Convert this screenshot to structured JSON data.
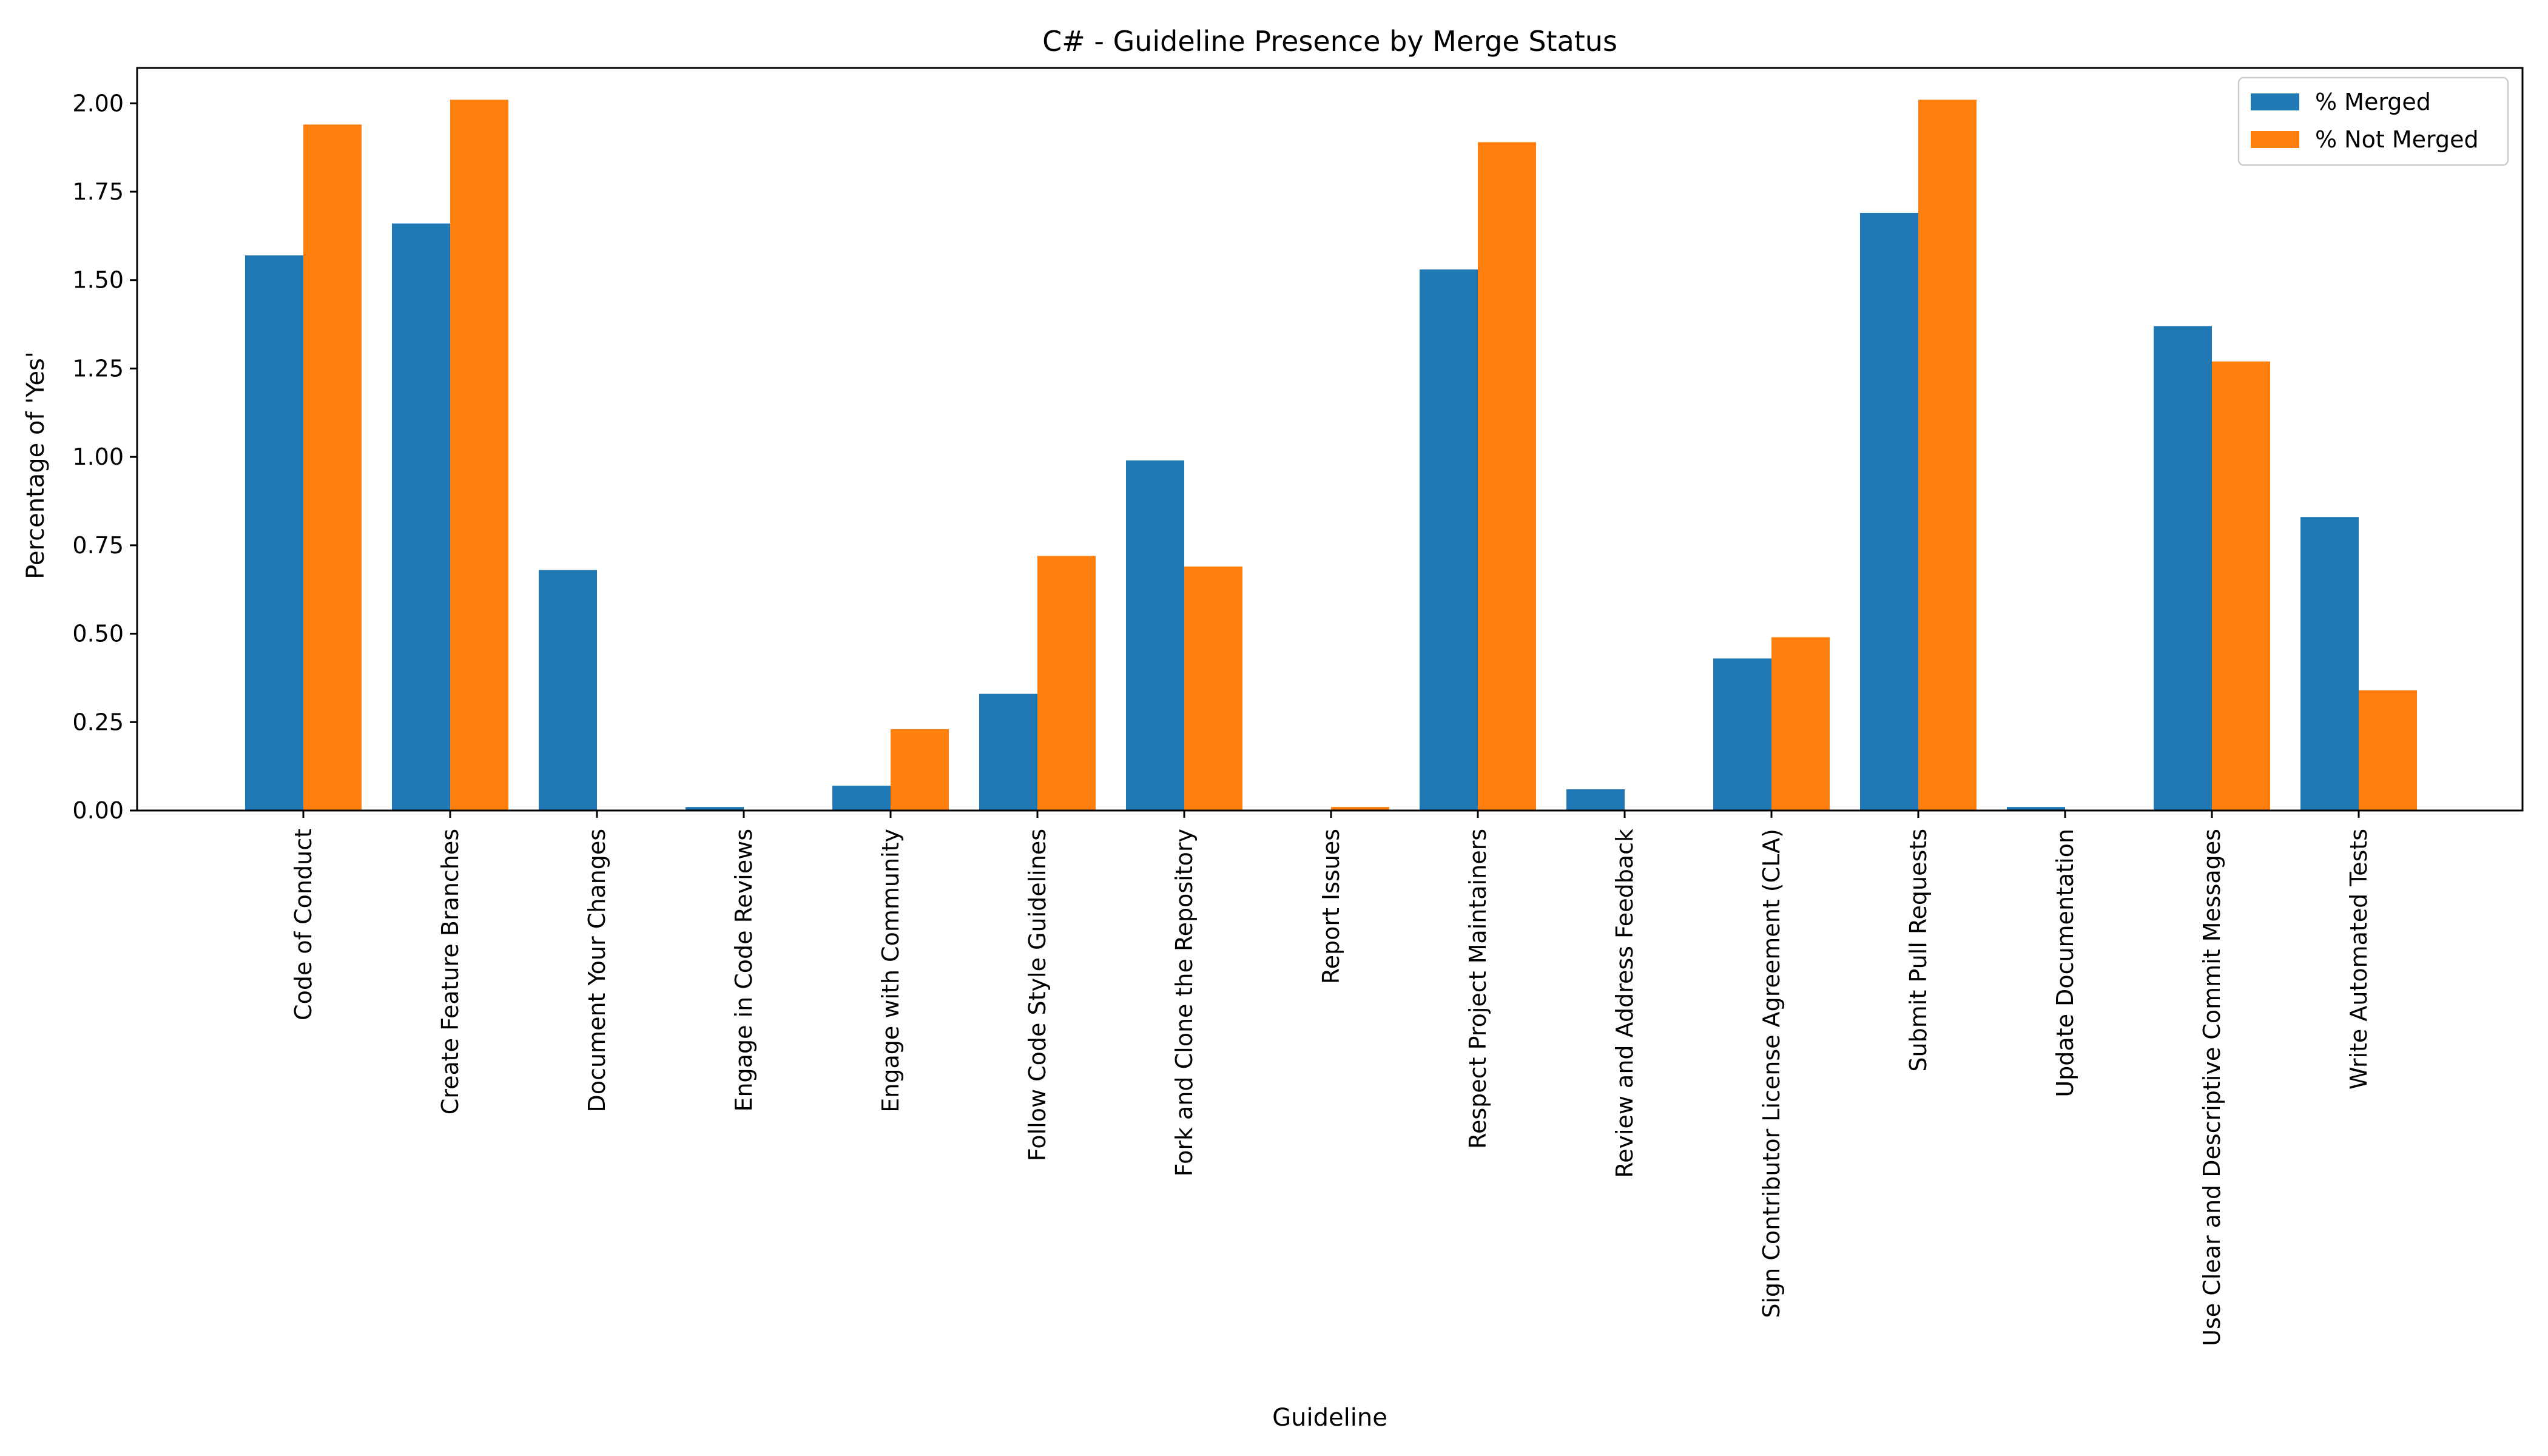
{
  "chart_data": {
    "type": "bar",
    "title": "C# - Guideline Presence by Merge Status",
    "xlabel": "Guideline",
    "ylabel": "Percentage of 'Yes'",
    "ylim": [
      0,
      2.1
    ],
    "yticks": [
      0.0,
      0.25,
      0.5,
      0.75,
      1.0,
      1.25,
      1.5,
      1.75,
      2.0
    ],
    "ytick_labels": [
      "0.00",
      "0.25",
      "0.50",
      "0.75",
      "1.00",
      "1.25",
      "1.50",
      "1.75",
      "2.00"
    ],
    "grid": false,
    "legend_position": "top-right",
    "categories": [
      "Code of Conduct",
      "Create Feature Branches",
      "Document Your Changes",
      "Engage in Code Reviews",
      "Engage with Community",
      "Follow Code Style Guidelines",
      "Fork and Clone the Repository",
      "Report Issues",
      "Respect Project Maintainers",
      "Review and Address Feedback",
      "Sign Contributor License Agreement (CLA)",
      "Submit Pull Requests",
      "Update Documentation",
      "Use Clear and Descriptive Commit Messages",
      "Write Automated Tests"
    ],
    "series": [
      {
        "name": "% Merged",
        "color": "#1f77b4",
        "values": [
          1.57,
          1.66,
          0.68,
          0.01,
          0.07,
          0.33,
          0.99,
          0.0,
          1.53,
          0.06,
          0.43,
          1.69,
          0.01,
          1.37,
          0.83
        ]
      },
      {
        "name": "% Not Merged",
        "color": "#ff7f0e",
        "values": [
          1.94,
          2.01,
          0.0,
          0.0,
          0.23,
          0.72,
          0.69,
          0.01,
          1.89,
          0.0,
          0.49,
          2.01,
          0.0,
          1.27,
          0.34
        ]
      }
    ]
  }
}
